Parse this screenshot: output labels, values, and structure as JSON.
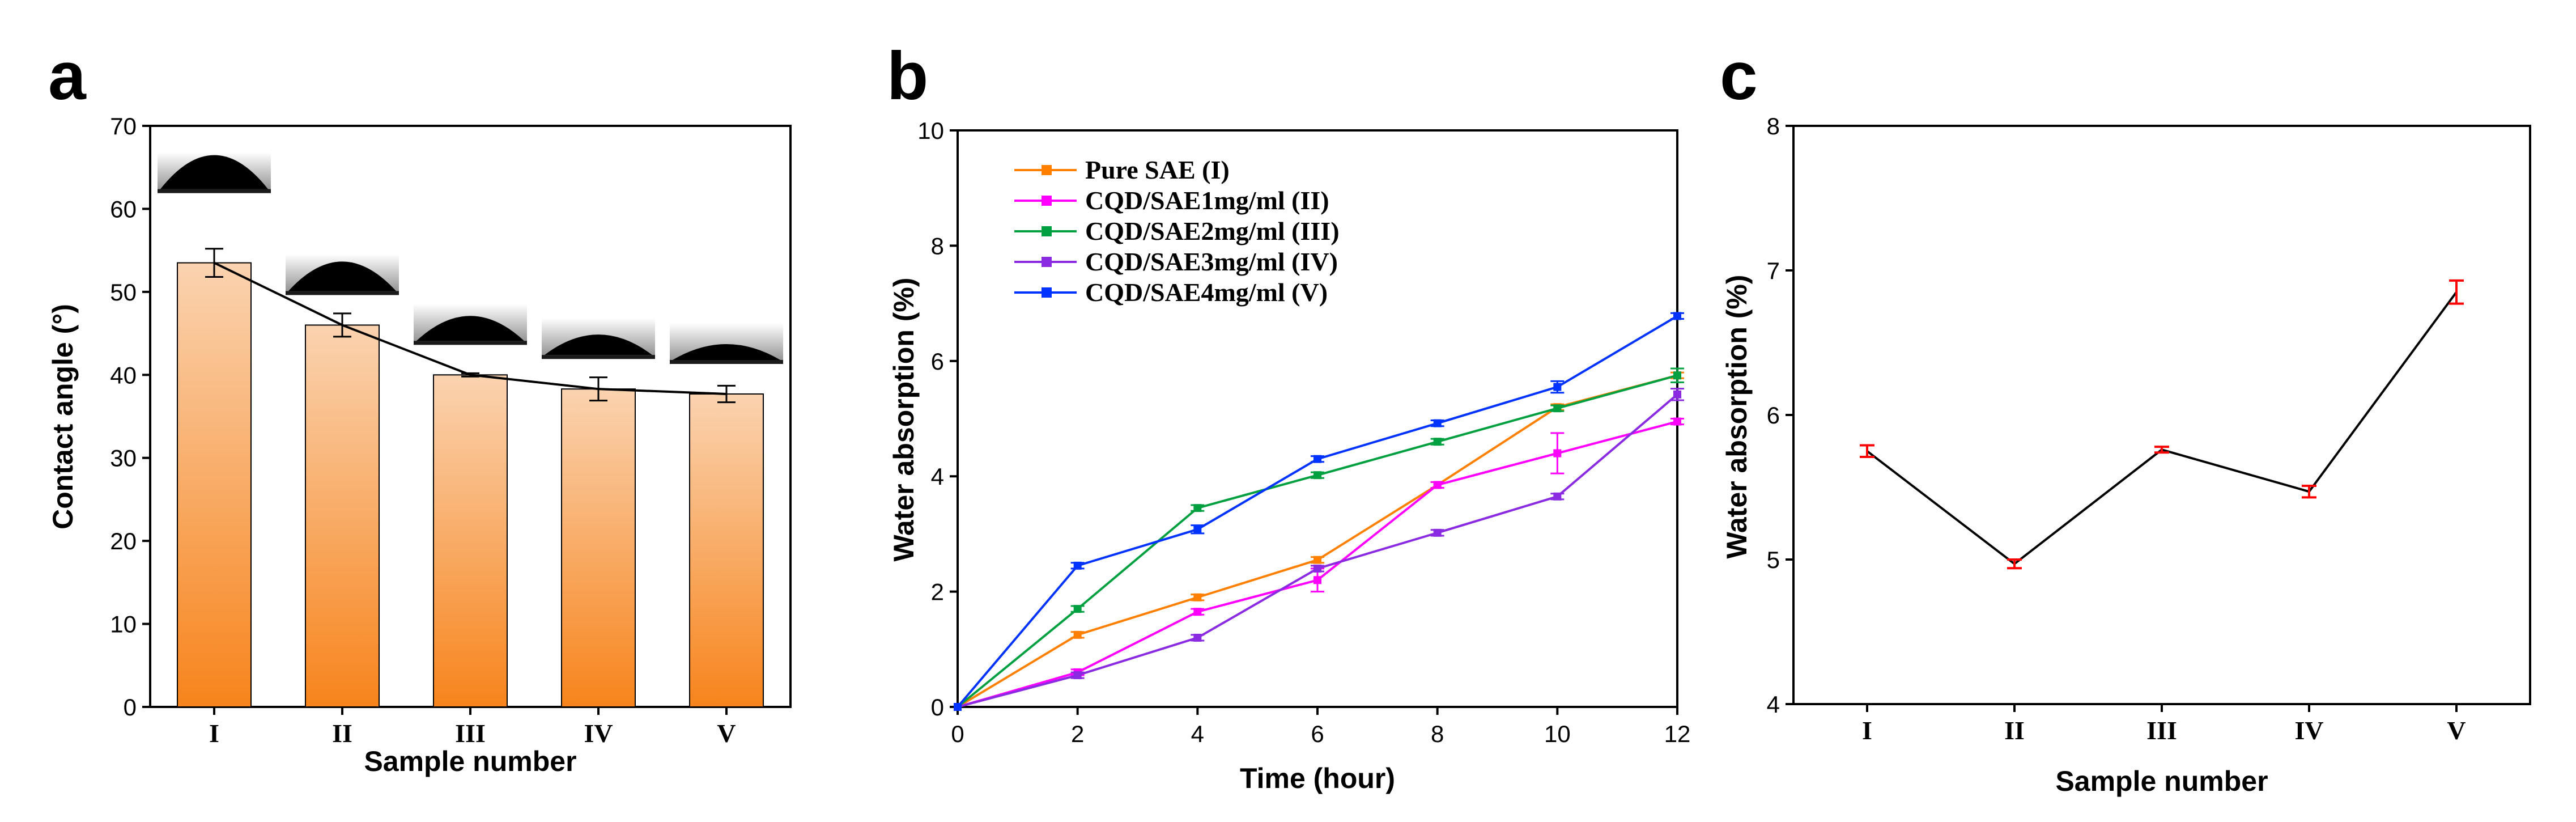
{
  "chart_data": [
    {
      "panel": "a",
      "type": "bar",
      "xlabel": "Sample number",
      "ylabel": "Contact angle (°)",
      "ylim": [
        0,
        70
      ],
      "yticks": [
        0,
        10,
        20,
        30,
        40,
        50,
        60,
        70
      ],
      "categories": [
        "I",
        "II",
        "III",
        "IV",
        "V"
      ],
      "values": [
        53.5,
        46.0,
        40.0,
        38.3,
        37.7
      ],
      "errors": [
        1.7,
        1.4,
        0.2,
        1.4,
        1.0
      ],
      "overlay_line": true,
      "inset_images": "water droplet contact-angle photos above each bar",
      "colors": {
        "bar_top": "#fad3b0",
        "bar_bottom": "#f7841c",
        "line": "#000000"
      }
    },
    {
      "panel": "b",
      "type": "line",
      "xlabel": "Time (hour)",
      "ylabel": "Water absorption (%)",
      "xlim": [
        0,
        12
      ],
      "ylim": [
        0,
        10
      ],
      "xticks": [
        0,
        2,
        4,
        6,
        8,
        10,
        12
      ],
      "yticks": [
        0,
        2,
        4,
        6,
        8,
        10
      ],
      "x": [
        0,
        2,
        4,
        6,
        8,
        10,
        12
      ],
      "legend_position": "top-left",
      "series": [
        {
          "name": "Pure SAE (I)",
          "color": "#ff8000",
          "values": [
            0,
            1.25,
            1.9,
            2.55,
            3.85,
            5.2,
            5.75
          ],
          "errors": [
            0,
            0.05,
            0.05,
            0.05,
            0.05,
            0.05,
            0.05
          ]
        },
        {
          "name": "CQD/SAE1mg/ml (II)",
          "color": "#ff00ff",
          "values": [
            0,
            0.6,
            1.65,
            2.2,
            3.85,
            4.4,
            4.95
          ],
          "errors": [
            0,
            0.05,
            0.05,
            0.2,
            0.05,
            0.35,
            0.05
          ]
        },
        {
          "name": "CQD/SAE2mg/ml (III)",
          "color": "#00a040",
          "values": [
            0,
            1.7,
            3.45,
            4.02,
            4.6,
            5.18,
            5.75
          ],
          "errors": [
            0,
            0.05,
            0.05,
            0.05,
            0.05,
            0.05,
            0.12
          ]
        },
        {
          "name": "CQD/SAE3mg/ml (IV)",
          "color": "#8a2be2",
          "values": [
            0,
            0.55,
            1.2,
            2.4,
            3.02,
            3.65,
            5.42
          ],
          "errors": [
            0,
            0.05,
            0.05,
            0.05,
            0.05,
            0.05,
            0.1
          ]
        },
        {
          "name": "CQD/SAE4mg/ml (V)",
          "color": "#0033ff",
          "values": [
            0,
            2.45,
            3.08,
            4.3,
            4.92,
            5.55,
            6.78
          ],
          "errors": [
            0,
            0.05,
            0.07,
            0.05,
            0.05,
            0.1,
            0.05
          ]
        }
      ]
    },
    {
      "panel": "c",
      "type": "line",
      "xlabel": "Sample number",
      "ylabel": "Water absorption (%)",
      "ylim": [
        4,
        8
      ],
      "yticks": [
        4,
        5,
        6,
        7,
        8
      ],
      "categories": [
        "I",
        "II",
        "III",
        "IV",
        "V"
      ],
      "values": [
        5.75,
        4.97,
        5.76,
        5.47,
        6.85
      ],
      "errors": [
        0.04,
        0.03,
        0.02,
        0.04,
        0.08
      ],
      "colors": {
        "line": "#000000",
        "error": "#ff0000"
      }
    }
  ]
}
